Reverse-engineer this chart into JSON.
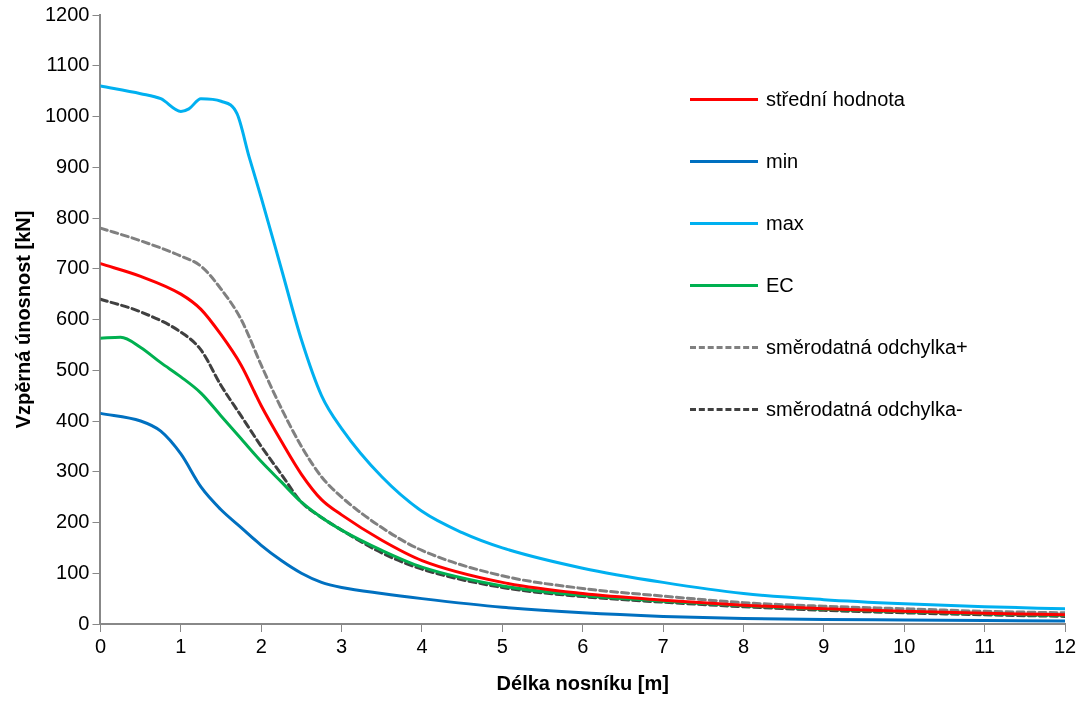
{
  "chart_data": {
    "type": "line",
    "xlabel": "Délka nosníku [m]",
    "ylabel": "Vzpěrná únosnost [kN]",
    "xlim": [
      0,
      12
    ],
    "xticks": [
      0,
      1,
      2,
      3,
      4,
      5,
      6,
      7,
      8,
      9,
      10,
      11,
      12
    ],
    "ylim": [
      0,
      1200
    ],
    "yticks": [
      0,
      100,
      200,
      300,
      400,
      500,
      600,
      700,
      800,
      900,
      1000,
      1100,
      1200
    ],
    "grid": false,
    "legend": "right",
    "marker": "none",
    "series": [
      {
        "name": "střední hodnota",
        "color": "#ff0000",
        "line_style": "solid",
        "x": [
          0,
          0.5,
          1,
          1.25,
          1.5,
          1.75,
          2,
          2.25,
          2.5,
          2.75,
          3,
          3.5,
          4,
          5,
          6,
          7,
          8,
          9,
          10,
          11,
          12
        ],
        "values": [
          710,
          685,
          650,
          620,
          570,
          510,
          430,
          360,
          295,
          245,
          215,
          165,
          125,
          82,
          60,
          47,
          37,
          30,
          25,
          21,
          18
        ]
      },
      {
        "name": "min",
        "color": "#0070c0",
        "line_style": "solid",
        "x": [
          0,
          0.5,
          0.75,
          1,
          1.25,
          1.5,
          1.75,
          2,
          2.25,
          2.5,
          2.75,
          3,
          3.5,
          4,
          5,
          6,
          7,
          8,
          9,
          10,
          11,
          12
        ],
        "values": [
          415,
          400,
          380,
          335,
          270,
          225,
          190,
          155,
          125,
          100,
          82,
          72,
          60,
          50,
          33,
          22,
          15,
          11,
          9,
          8,
          7,
          6
        ]
      },
      {
        "name": "max",
        "color": "#00b0f0",
        "line_style": "solid",
        "x": [
          0,
          0.5,
          0.75,
          1,
          1.1,
          1.25,
          1.5,
          1.7,
          1.85,
          2,
          2.25,
          2.5,
          2.75,
          3,
          3.5,
          4,
          4.5,
          5,
          6,
          7,
          8,
          9,
          10,
          11,
          12
        ],
        "values": [
          1060,
          1045,
          1035,
          1010,
          1015,
          1035,
          1030,
          1005,
          920,
          840,
          700,
          560,
          450,
          385,
          290,
          222,
          180,
          150,
          110,
          82,
          60,
          48,
          40,
          34,
          30
        ]
      },
      {
        "name": "EC",
        "color": "#00b050",
        "line_style": "solid",
        "x": [
          0,
          0.25,
          0.5,
          0.75,
          1,
          1.25,
          1.5,
          1.75,
          2,
          2.25,
          2.5,
          2.75,
          3,
          3.5,
          4,
          5,
          6,
          7,
          8,
          9,
          10,
          11,
          12
        ],
        "values": [
          563,
          565,
          545,
          515,
          487,
          455,
          410,
          365,
          320,
          280,
          240,
          210,
          185,
          145,
          112,
          75,
          56,
          45,
          36,
          29,
          24,
          20,
          17
        ]
      },
      {
        "name": "směrodatná odchylka+",
        "color": "#808080",
        "line_style": "dashed",
        "x": [
          0,
          0.5,
          1,
          1.25,
          1.5,
          1.75,
          2,
          2.25,
          2.5,
          2.75,
          3,
          3.5,
          4,
          5,
          6,
          7,
          8,
          9,
          10,
          11,
          12
        ],
        "values": [
          780,
          755,
          725,
          705,
          660,
          600,
          510,
          425,
          350,
          290,
          250,
          190,
          145,
          95,
          70,
          55,
          42,
          35,
          30,
          25,
          22
        ]
      },
      {
        "name": "směrodatná odchylka-",
        "color": "#404040",
        "line_style": "dashed",
        "x": [
          0,
          0.5,
          1,
          1.25,
          1.5,
          1.75,
          2,
          2.25,
          2.5,
          2.75,
          3,
          3.5,
          4,
          5,
          6,
          7,
          8,
          9,
          10,
          11,
          12
        ],
        "values": [
          640,
          615,
          575,
          540,
          470,
          410,
          350,
          295,
          240,
          210,
          185,
          140,
          108,
          72,
          54,
          43,
          34,
          27,
          22,
          18,
          15
        ]
      }
    ]
  }
}
